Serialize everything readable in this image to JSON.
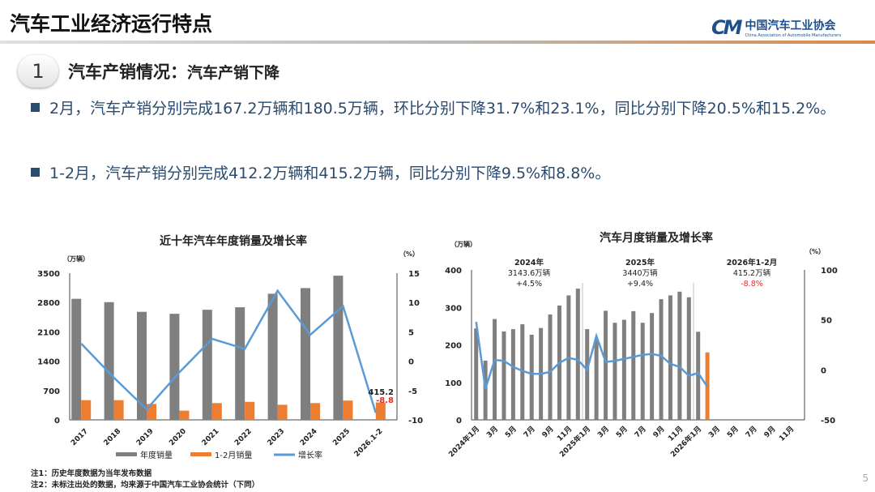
{
  "header": {
    "title": "汽车工业经济运行特点",
    "logo_cn": "中国汽车工业协会",
    "logo_en": "China Association of Automobile Manufacturers",
    "logo_mark": "CM"
  },
  "section": {
    "number": "1",
    "title": "汽车产销情况：",
    "subtitle": "汽车产销下降"
  },
  "bullets": [
    "2月，汽车产销分别完成167.2万辆和180.5万辆，环比分别下降31.7%和23.1%，同比分别下降20.5%和15.2%。",
    "1-2月，汽车产销分别完成412.2万辆和415.2万辆，同比分别下降9.5%和8.8%。"
  ],
  "notes": [
    "注1：历史年度数据为当年发布数据",
    "注2：未标注出处的数据，均来源于中国汽车工业协会统计（下同）"
  ],
  "page_number": "5",
  "colors": {
    "gray": "#7f7f7f",
    "orange": "#ed7d31",
    "blue": "#5b9bd5",
    "red": "#e03030",
    "text_blue": "#2a4a6e"
  },
  "chart_data": [
    {
      "type": "bar+line",
      "title": "近十年汽车年度销量及增长率",
      "ylabel": "（万辆）",
      "y2label": "（%）",
      "ylim": [
        0,
        3500
      ],
      "yticks": [
        "0",
        "700",
        "1400",
        "2100",
        "2800",
        "3500"
      ],
      "y2lim": [
        -10,
        15
      ],
      "y2ticks": [
        "-10",
        "-5",
        "0",
        "5",
        "10",
        "15"
      ],
      "categories": [
        "2017",
        "2018",
        "2019",
        "2020",
        "2021",
        "2022",
        "2023",
        "2024",
        "2025",
        "2026.1-2"
      ],
      "series": [
        {
          "name": "年度销量",
          "type": "bar",
          "color": "#7f7f7f",
          "values": [
            2888,
            2808,
            2577,
            2531,
            2627,
            2686,
            3009,
            3144,
            3440,
            null
          ]
        },
        {
          "name": "1-2月销量",
          "type": "bar",
          "color": "#ed7d31",
          "values": [
            470,
            470,
            380,
            220,
            400,
            430,
            360,
            400,
            460,
            415.2
          ]
        },
        {
          "name": "增长率",
          "type": "line",
          "axis": "right",
          "color": "#5b9bd5",
          "values": [
            3.0,
            -2.8,
            -8.2,
            -1.9,
            3.8,
            2.1,
            12.0,
            4.5,
            9.4,
            -8.8
          ]
        }
      ],
      "annotations": [
        {
          "text": "415.2",
          "color": "#222"
        },
        {
          "text": "-8.8",
          "color": "#e03030"
        }
      ],
      "legend": "bottom"
    },
    {
      "type": "bar+line",
      "title": "汽车月度销量及增长率",
      "ylabel": "（万辆）",
      "y2label": "（%）",
      "ylim": [
        0,
        400
      ],
      "yticks": [
        "0",
        "100",
        "200",
        "300",
        "400"
      ],
      "y2lim": [
        -50,
        100
      ],
      "y2ticks": [
        "-50",
        "0",
        "50",
        "100"
      ],
      "xticklabels": [
        "2024年1月",
        "3月",
        "5月",
        "7月",
        "9月",
        "11月",
        "2025年1月",
        "3月",
        "5月",
        "7月",
        "9月",
        "11月",
        "2026年1月",
        "3月",
        "5月",
        "7月",
        "9月",
        "11月"
      ],
      "months": 36,
      "series": [
        {
          "type": "bar",
          "color": "#7f7f7f",
          "values": [
            244,
            158,
            269,
            236,
            242,
            255,
            227,
            245,
            281,
            305,
            332,
            350,
            242,
            213,
            291,
            259,
            267,
            290,
            259,
            285,
            322,
            332,
            342,
            327,
            235
          ]
        },
        {
          "type": "bar",
          "color": "#ed7d31",
          "values": [
            null,
            null,
            null,
            null,
            null,
            null,
            null,
            null,
            null,
            null,
            null,
            null,
            null,
            null,
            null,
            null,
            null,
            null,
            null,
            null,
            null,
            null,
            null,
            null,
            null,
            180
          ]
        },
        {
          "type": "line",
          "axis": "right",
          "color": "#5b9bd5",
          "values": [
            48,
            -19,
            10,
            9,
            3,
            -1,
            -4,
            -4,
            -2,
            7,
            12,
            10,
            0,
            34,
            8,
            9,
            11,
            13,
            15,
            16,
            14,
            6,
            3,
            -6,
            -3,
            -17
          ]
        }
      ],
      "annotations": [
        {
          "lines": [
            "2024年",
            "3143.6万辆",
            "+4.5%"
          ],
          "color": "#222"
        },
        {
          "lines": [
            "2025年",
            "3440万辆",
            "+9.4%"
          ],
          "color": "#222"
        },
        {
          "lines": [
            "2026年1-2月",
            "415.2万辆",
            "-8.8%"
          ],
          "color": "#e03030"
        }
      ]
    }
  ]
}
